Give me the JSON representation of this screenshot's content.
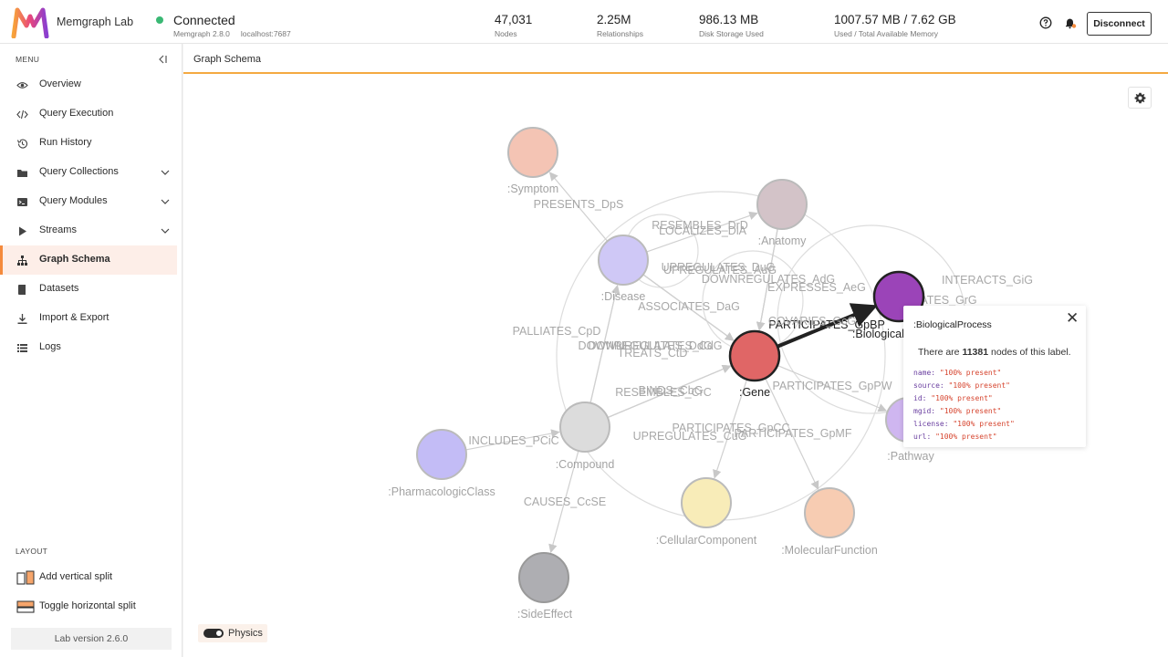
{
  "header": {
    "app_name": "Memgraph Lab",
    "status": "Connected",
    "version": "Memgraph 2.8.0",
    "host": "localhost:7687",
    "stats": [
      {
        "value": "47,031",
        "label": "Nodes"
      },
      {
        "value": "2.25M",
        "label": "Relationships"
      },
      {
        "value": "986.13 MB",
        "label": "Disk Storage Used"
      },
      {
        "value": "1007.57 MB / 7.62 GB",
        "label": "Used / Total Available Memory"
      }
    ],
    "disconnect_label": "Disconnect"
  },
  "sidebar": {
    "menu_label": "MENU",
    "items": [
      {
        "label": "Overview",
        "icon": "eye-icon"
      },
      {
        "label": "Query Execution",
        "icon": "code-icon"
      },
      {
        "label": "Run History",
        "icon": "history-icon"
      },
      {
        "label": "Query Collections",
        "icon": "folder-icon"
      },
      {
        "label": "Query Modules",
        "icon": "module-icon"
      },
      {
        "label": "Streams",
        "icon": "play-icon"
      },
      {
        "label": "Graph Schema",
        "icon": "schema-icon"
      },
      {
        "label": "Datasets",
        "icon": "book-icon"
      },
      {
        "label": "Import & Export",
        "icon": "download-icon"
      },
      {
        "label": "Logs",
        "icon": "list-icon"
      }
    ],
    "layout_label": "LAYOUT",
    "layout_items": [
      {
        "label": "Add vertical split"
      },
      {
        "label": "Toggle horizontal split"
      }
    ],
    "lab_version": "Lab version 2.6.0"
  },
  "main": {
    "tab_title": "Graph Schema",
    "physics_label": "Physics"
  },
  "graph": {
    "nodes": [
      {
        "label": ":Symptom"
      },
      {
        "label": ":Anatomy"
      },
      {
        "label": ":Disease"
      },
      {
        "label": ":BiologicalProcess"
      },
      {
        "label": ":Gene"
      },
      {
        "label": ":Compound"
      },
      {
        "label": ":Pathway"
      },
      {
        "label": ":PharmacologicClass"
      },
      {
        "label": ":CellularComponent"
      },
      {
        "label": ":MolecularFunction"
      },
      {
        "label": ":SideEffect"
      }
    ],
    "edges": [
      "PRESENTS_DpS",
      "RESEMBLES_DrD",
      "LOCALIZES_DlA",
      "UPREGULATES_DuG",
      "UPREGULATES_AuG",
      "DOWNREGULATES_AdG",
      "EXPRESSES_AeG",
      "INTERACTS_GiG",
      "REGULATES_GrG",
      "PARTICIPATES_GpBP",
      "ASSOCIATES_DaG",
      "PALLIATES_CpD",
      "DOWNREGULATES_DdG",
      "DOWNREGULATES_CdG",
      "TREATS_CtD",
      "RESEMBLES_CrC",
      "BINDS_CbG",
      "PARTICIPATES_GpPW",
      "INCLUDES_PCiC",
      "PARTICIPATES_GpCC",
      "UPREGULATES_CuG",
      "PARTICIPATES_GpMF",
      "CAUSES_CcSE",
      "COVARIES_GcG"
    ]
  },
  "tooltip": {
    "title": ":BiologicalProcess",
    "count_prefix": "There are",
    "count": "11381",
    "count_suffix": "nodes of this label.",
    "properties": [
      {
        "key": "name",
        "value": "\"100% present\""
      },
      {
        "key": "source",
        "value": "\"100% present\""
      },
      {
        "key": "id",
        "value": "\"100% present\""
      },
      {
        "key": "mgid",
        "value": "\"100% present\""
      },
      {
        "key": "license",
        "value": "\"100% present\""
      },
      {
        "key": "url",
        "value": "\"100% present\""
      }
    ]
  },
  "colors": {
    "accent": "#f48a3c",
    "status_green": "#3ab874",
    "gene": "#e06666",
    "bioprocess": "#9b44b8"
  }
}
